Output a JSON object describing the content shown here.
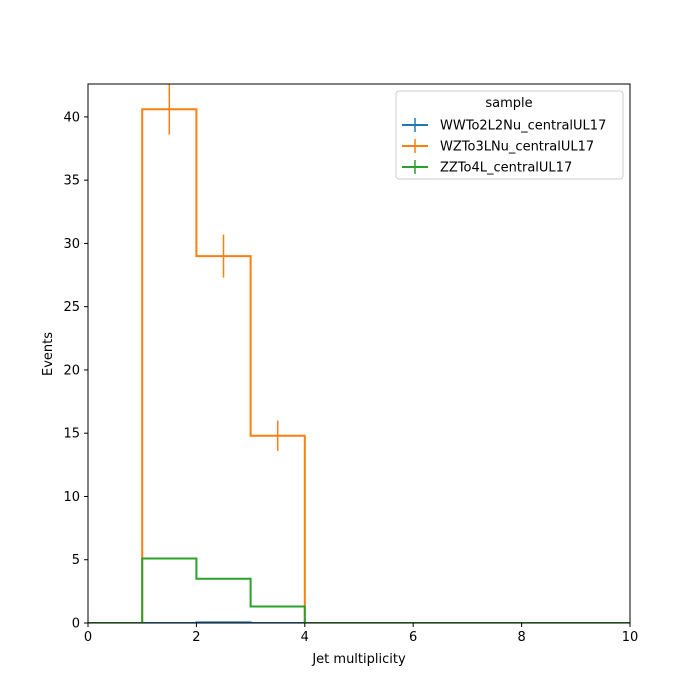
{
  "chart_data": {
    "type": "line",
    "title": "",
    "xlabel": "Jet multiplicity",
    "ylabel": "Events",
    "xlim": [
      0,
      10
    ],
    "ylim": [
      0,
      42.6
    ],
    "x_ticks": [
      0,
      2,
      4,
      6,
      8,
      10
    ],
    "y_ticks": [
      0,
      5,
      10,
      15,
      20,
      25,
      30,
      35,
      40
    ],
    "bin_edges": [
      0,
      1,
      2,
      3,
      4,
      5,
      6,
      7,
      8,
      9,
      10
    ],
    "grid": false,
    "legend": {
      "title": "sample",
      "placement": "top-right"
    },
    "series": [
      {
        "name": "WWTo2L2Nu_centralUL17",
        "color": "#1f77b4",
        "values": [
          0,
          0,
          0.05,
          0,
          0,
          0,
          0,
          0,
          0,
          0
        ],
        "errors": [
          0,
          0,
          0,
          0,
          0,
          0,
          0,
          0,
          0,
          0
        ]
      },
      {
        "name": "WZTo3LNu_centralUL17",
        "color": "#ff7f0e",
        "values": [
          0,
          40.6,
          29.0,
          14.8,
          0,
          0,
          0,
          0,
          0,
          0
        ],
        "errors": [
          0,
          2.0,
          1.7,
          1.2,
          0,
          0,
          0,
          0,
          0,
          0
        ]
      },
      {
        "name": "ZZTo4L_centralUL17",
        "color": "#2ca02c",
        "values": [
          0,
          5.1,
          3.5,
          1.3,
          0,
          0,
          0,
          0,
          0,
          0
        ],
        "errors": [
          0,
          0,
          0,
          0,
          0,
          0,
          0,
          0,
          0,
          0
        ]
      }
    ]
  }
}
